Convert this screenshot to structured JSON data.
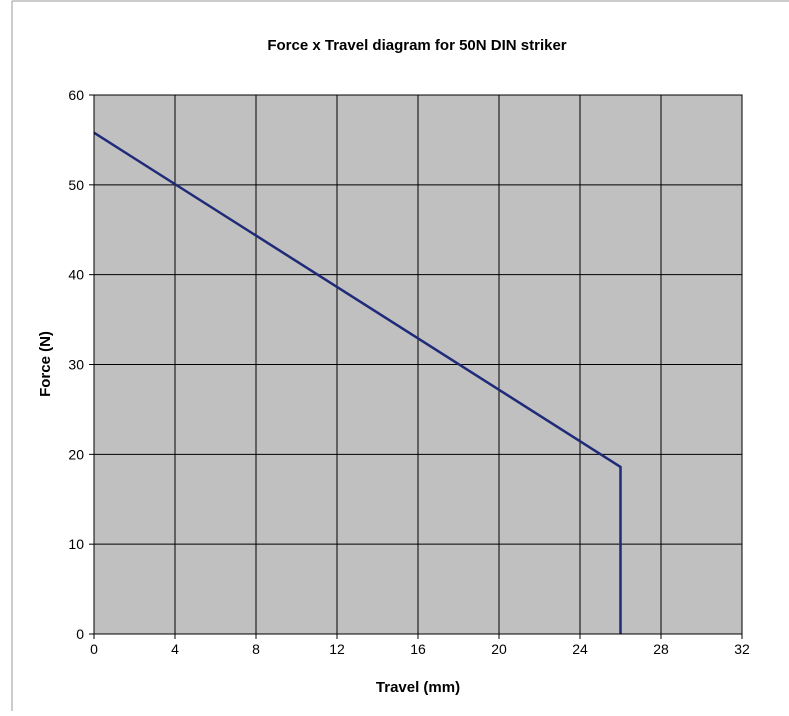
{
  "chart_data": {
    "type": "line",
    "title": "Force x Travel diagram for 50N DIN striker",
    "xlabel": "Travel (mm)",
    "ylabel": "Force (N)",
    "xlim": [
      0,
      32
    ],
    "ylim": [
      0,
      60
    ],
    "xticks": [
      "0",
      "4",
      "8",
      "12",
      "16",
      "20",
      "24",
      "28",
      "32"
    ],
    "yticks": [
      "0",
      "10",
      "20",
      "30",
      "40",
      "50",
      "60"
    ],
    "grid": true,
    "legend": "none",
    "plot_background": "#c0c0c0",
    "series": [
      {
        "color": "#1f2a78",
        "x": [
          0,
          26,
          26
        ],
        "y": [
          55.8,
          18.6,
          0
        ]
      }
    ]
  }
}
